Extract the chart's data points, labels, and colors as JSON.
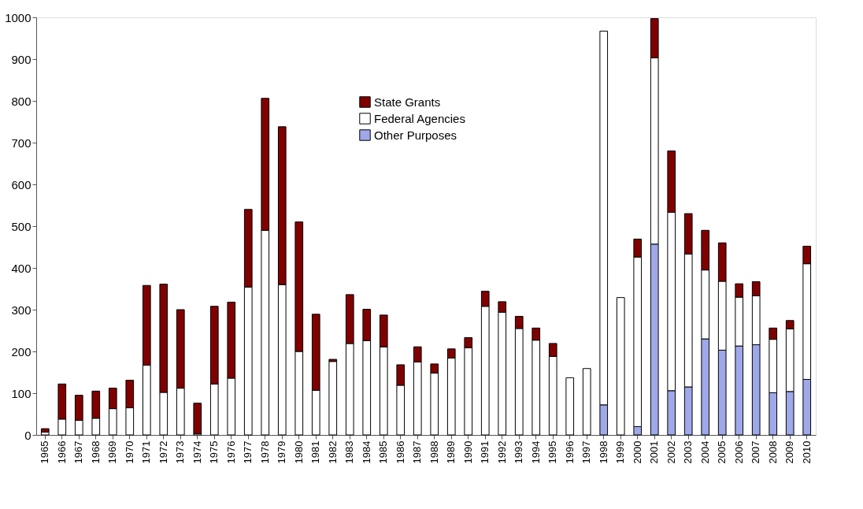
{
  "chart_data": {
    "type": "bar",
    "stacked": true,
    "categories": [
      "1965",
      "1966",
      "1967",
      "1968",
      "1969",
      "1970",
      "1971",
      "1972",
      "1973",
      "1974",
      "1975",
      "1976",
      "1977",
      "1978",
      "1979",
      "1980",
      "1981",
      "1982",
      "1983",
      "1984",
      "1985",
      "1986",
      "1987",
      "1988",
      "1989",
      "1990",
      "1991",
      "1992",
      "1993",
      "1994",
      "1995",
      "1996",
      "1997",
      "1998",
      "1999",
      "2000",
      "2001",
      "2002",
      "2003",
      "2004",
      "2005",
      "2006",
      "2007",
      "2008",
      "2009",
      "2010"
    ],
    "series": [
      {
        "name": "Other Purposes",
        "color": "#9fa8e8",
        "values": [
          null,
          null,
          null,
          null,
          null,
          null,
          null,
          null,
          null,
          null,
          null,
          null,
          null,
          null,
          null,
          null,
          null,
          null,
          null,
          null,
          null,
          null,
          null,
          null,
          null,
          null,
          null,
          null,
          null,
          null,
          null,
          null,
          null,
          72,
          null,
          20,
          457,
          106,
          115,
          230,
          203,
          213,
          216,
          101,
          104,
          133
        ]
      },
      {
        "name": "Federal Agencies",
        "color": "#ffffff",
        "values": [
          7,
          38,
          35,
          40,
          63,
          65,
          167,
          102,
          112,
          3,
          122,
          136,
          354,
          490,
          360,
          200,
          107,
          176,
          219,
          226,
          211,
          119,
          175,
          148,
          184,
          209,
          308,
          294,
          255,
          227,
          188,
          137,
          159,
          895,
          329,
          406,
          446,
          427,
          318,
          165,
          165,
          117,
          117,
          128,
          150,
          277
        ]
      },
      {
        "name": "State Grants",
        "color": "#800000",
        "values": [
          8,
          84,
          60,
          65,
          49,
          66,
          191,
          259,
          188,
          73,
          186,
          182,
          186,
          316,
          378,
          310,
          182,
          5,
          117,
          75,
          76,
          49,
          36,
          22,
          22,
          24,
          36,
          25,
          29,
          29,
          31,
          null,
          null,
          null,
          null,
          43,
          94,
          147,
          97,
          95,
          92,
          32,
          34,
          27,
          20,
          42
        ]
      }
    ],
    "ylim": [
      0,
      1000
    ],
    "yticks": [
      0,
      100,
      200,
      300,
      400,
      500,
      600,
      700,
      800,
      900,
      1000
    ],
    "legend": "top",
    "grid": false
  }
}
